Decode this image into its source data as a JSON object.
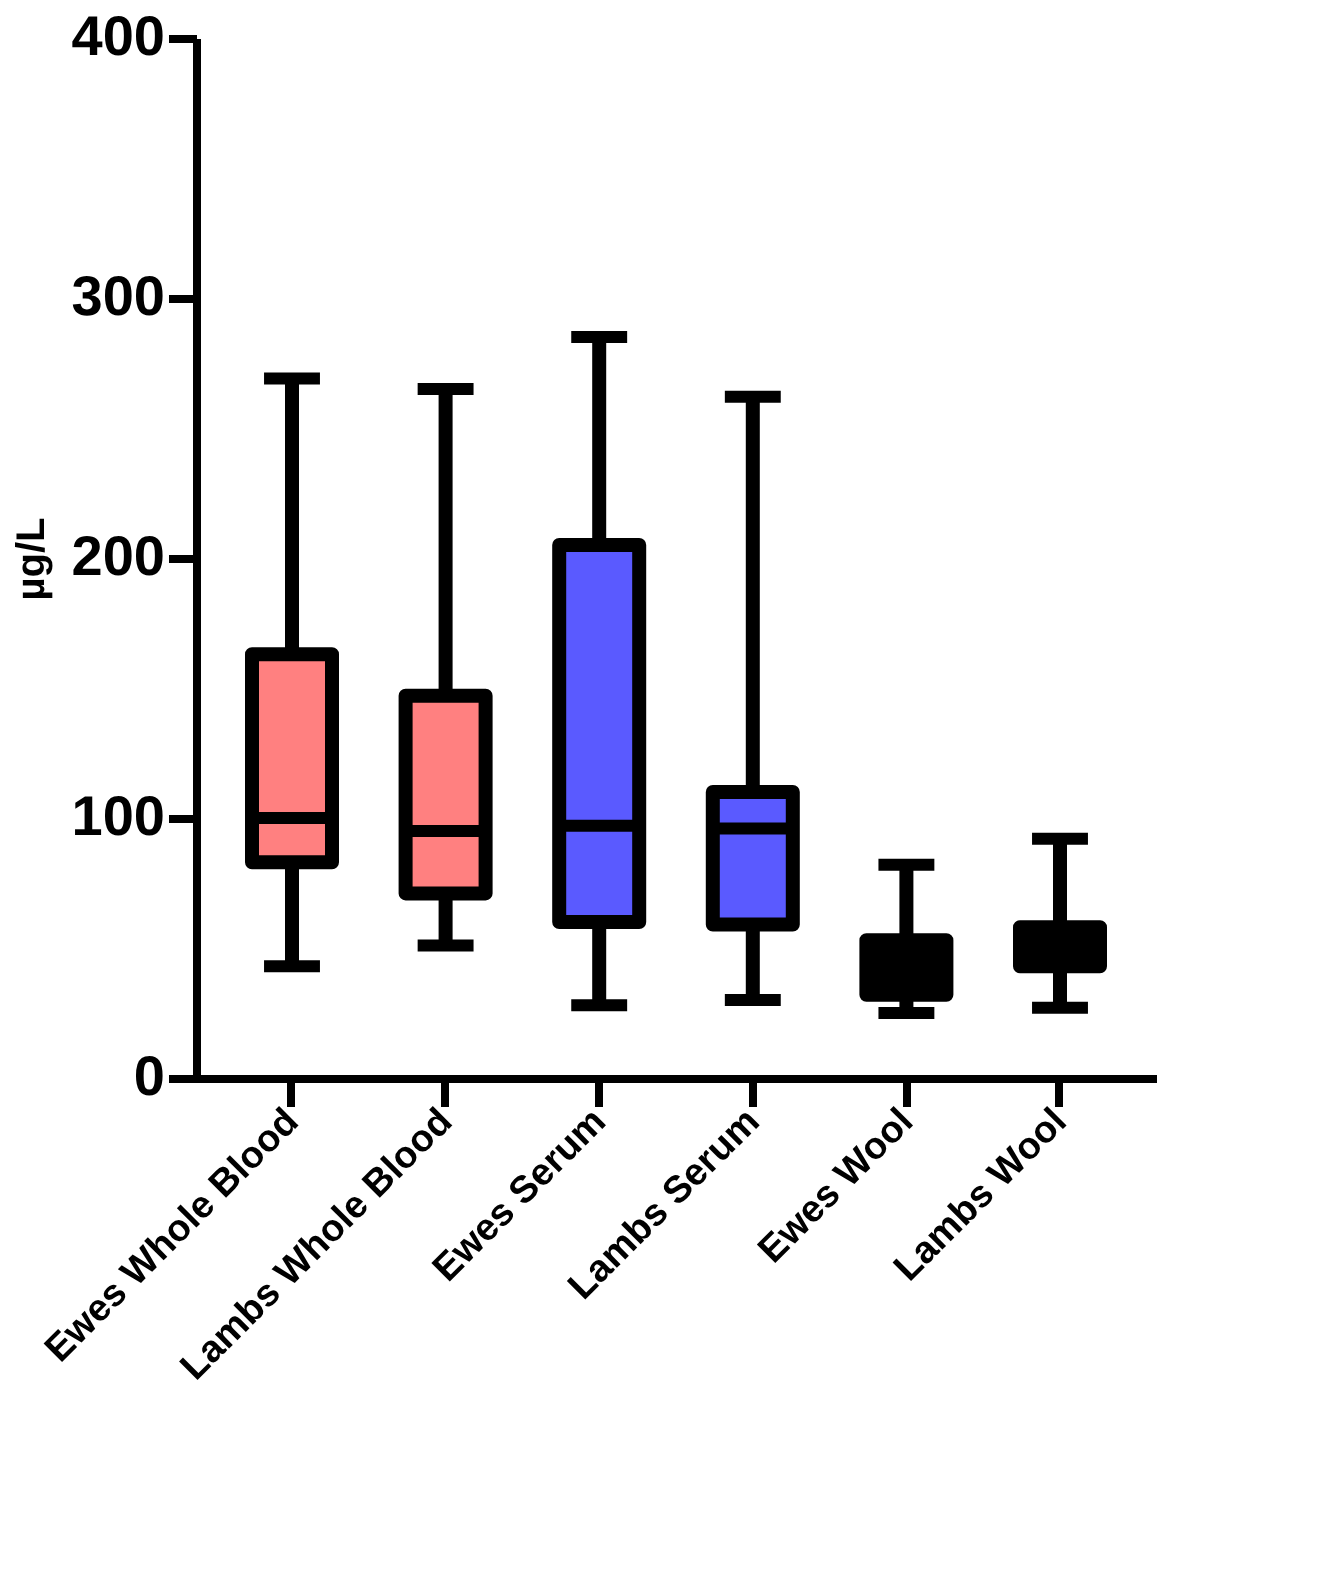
{
  "chart_data": {
    "type": "box",
    "ylabel": "µg/L",
    "categories": [
      "Ewes Whole Blood",
      "Lambs Whole Blood",
      "Ewes Serum",
      "Lambs Serum",
      "Ewes Wool",
      "Lambs Wool"
    ],
    "boxes": [
      {
        "low": 43,
        "q1": 83,
        "median": 100,
        "q3": 163,
        "high": 269
      },
      {
        "low": 51,
        "q1": 71,
        "median": 95,
        "q3": 147,
        "high": 265
      },
      {
        "low": 28,
        "q1": 60,
        "median": 97,
        "q3": 205,
        "high": 285
      },
      {
        "low": 30,
        "q1": 59,
        "median": 96,
        "q3": 110,
        "high": 262
      },
      {
        "low": 25,
        "q1": 32,
        "median": 43,
        "q3": 53,
        "high": 82
      },
      {
        "low": 27,
        "q1": 43,
        "median": 50,
        "q3": 58,
        "high": 92
      }
    ],
    "colors": [
      "#ff8080",
      "#ff8080",
      "#5a5aff",
      "#5a5aff",
      "#000000",
      "#000000"
    ],
    "ylim": [
      0,
      400
    ],
    "yticks": [
      0,
      100,
      200,
      300,
      400
    ],
    "grid": false
  }
}
